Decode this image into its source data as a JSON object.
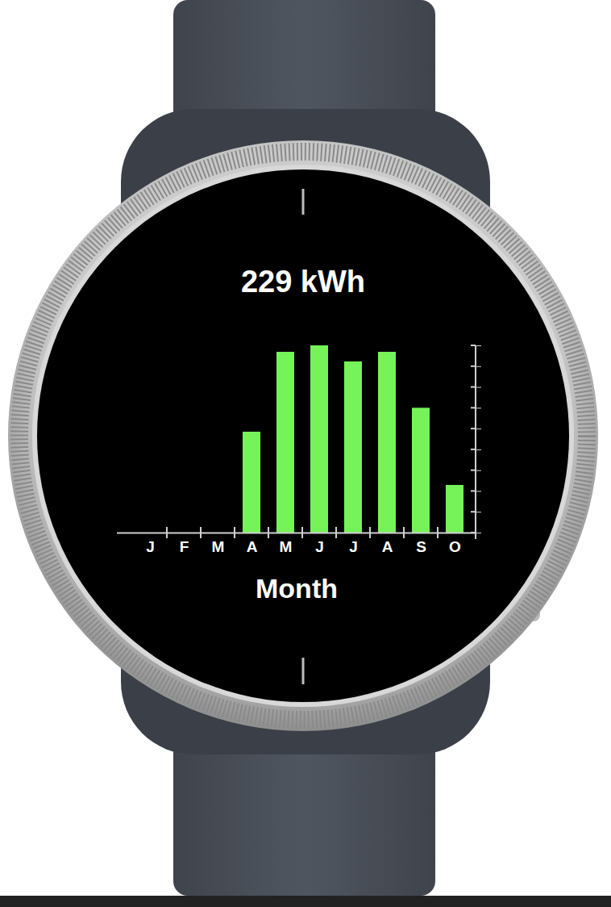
{
  "chart_data": {
    "type": "bar",
    "title": "229 kWh",
    "xlabel": "Month",
    "categories": [
      "J",
      "F",
      "M",
      "A",
      "M",
      "J",
      "J",
      "A",
      "S",
      "O"
    ],
    "values": [
      0,
      0,
      0,
      485,
      869,
      900,
      823,
      869,
      600,
      229
    ],
    "color": "#76f359",
    "ylim": [
      0,
      900
    ],
    "yticks": [
      0,
      100,
      200,
      300,
      400,
      500,
      600,
      700,
      800,
      900
    ],
    "tick_labels": "x"
  }
}
